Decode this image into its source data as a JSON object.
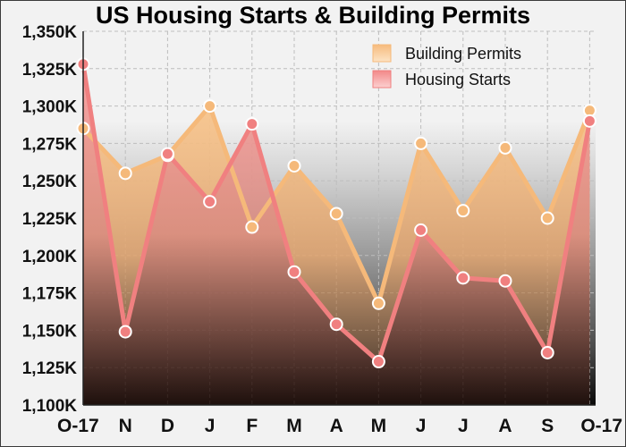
{
  "chart_data": {
    "type": "area",
    "title": "US Housing Starts & Building Permits",
    "categories": [
      "O-17",
      "N",
      "D",
      "J",
      "F",
      "M",
      "A",
      "M",
      "J",
      "J",
      "A",
      "S",
      "O-17"
    ],
    "ylim": [
      1100,
      1350
    ],
    "ytick_values": [
      1100,
      1125,
      1150,
      1175,
      1200,
      1225,
      1250,
      1275,
      1300,
      1325,
      1350
    ],
    "ytick_labels": [
      "1,100K",
      "1,125K",
      "1,150K",
      "1,175K",
      "1,200K",
      "1,225K",
      "1,250K",
      "1,275K",
      "1,300K",
      "1,325K",
      "1,350K"
    ],
    "grid": true,
    "legend_position": "top-right",
    "series": [
      {
        "name": "Building Permits",
        "color": "#f5b97a",
        "values": [
          1285,
          1255,
          1267,
          1300,
          1219,
          1260,
          1228,
          1168,
          1275,
          1230,
          1272,
          1225,
          1297
        ]
      },
      {
        "name": "Housing Starts",
        "color": "#f08080",
        "values": [
          1328,
          1149,
          1268,
          1236,
          1288,
          1189,
          1154,
          1129,
          1217,
          1185,
          1183,
          1135,
          1290
        ]
      }
    ]
  }
}
